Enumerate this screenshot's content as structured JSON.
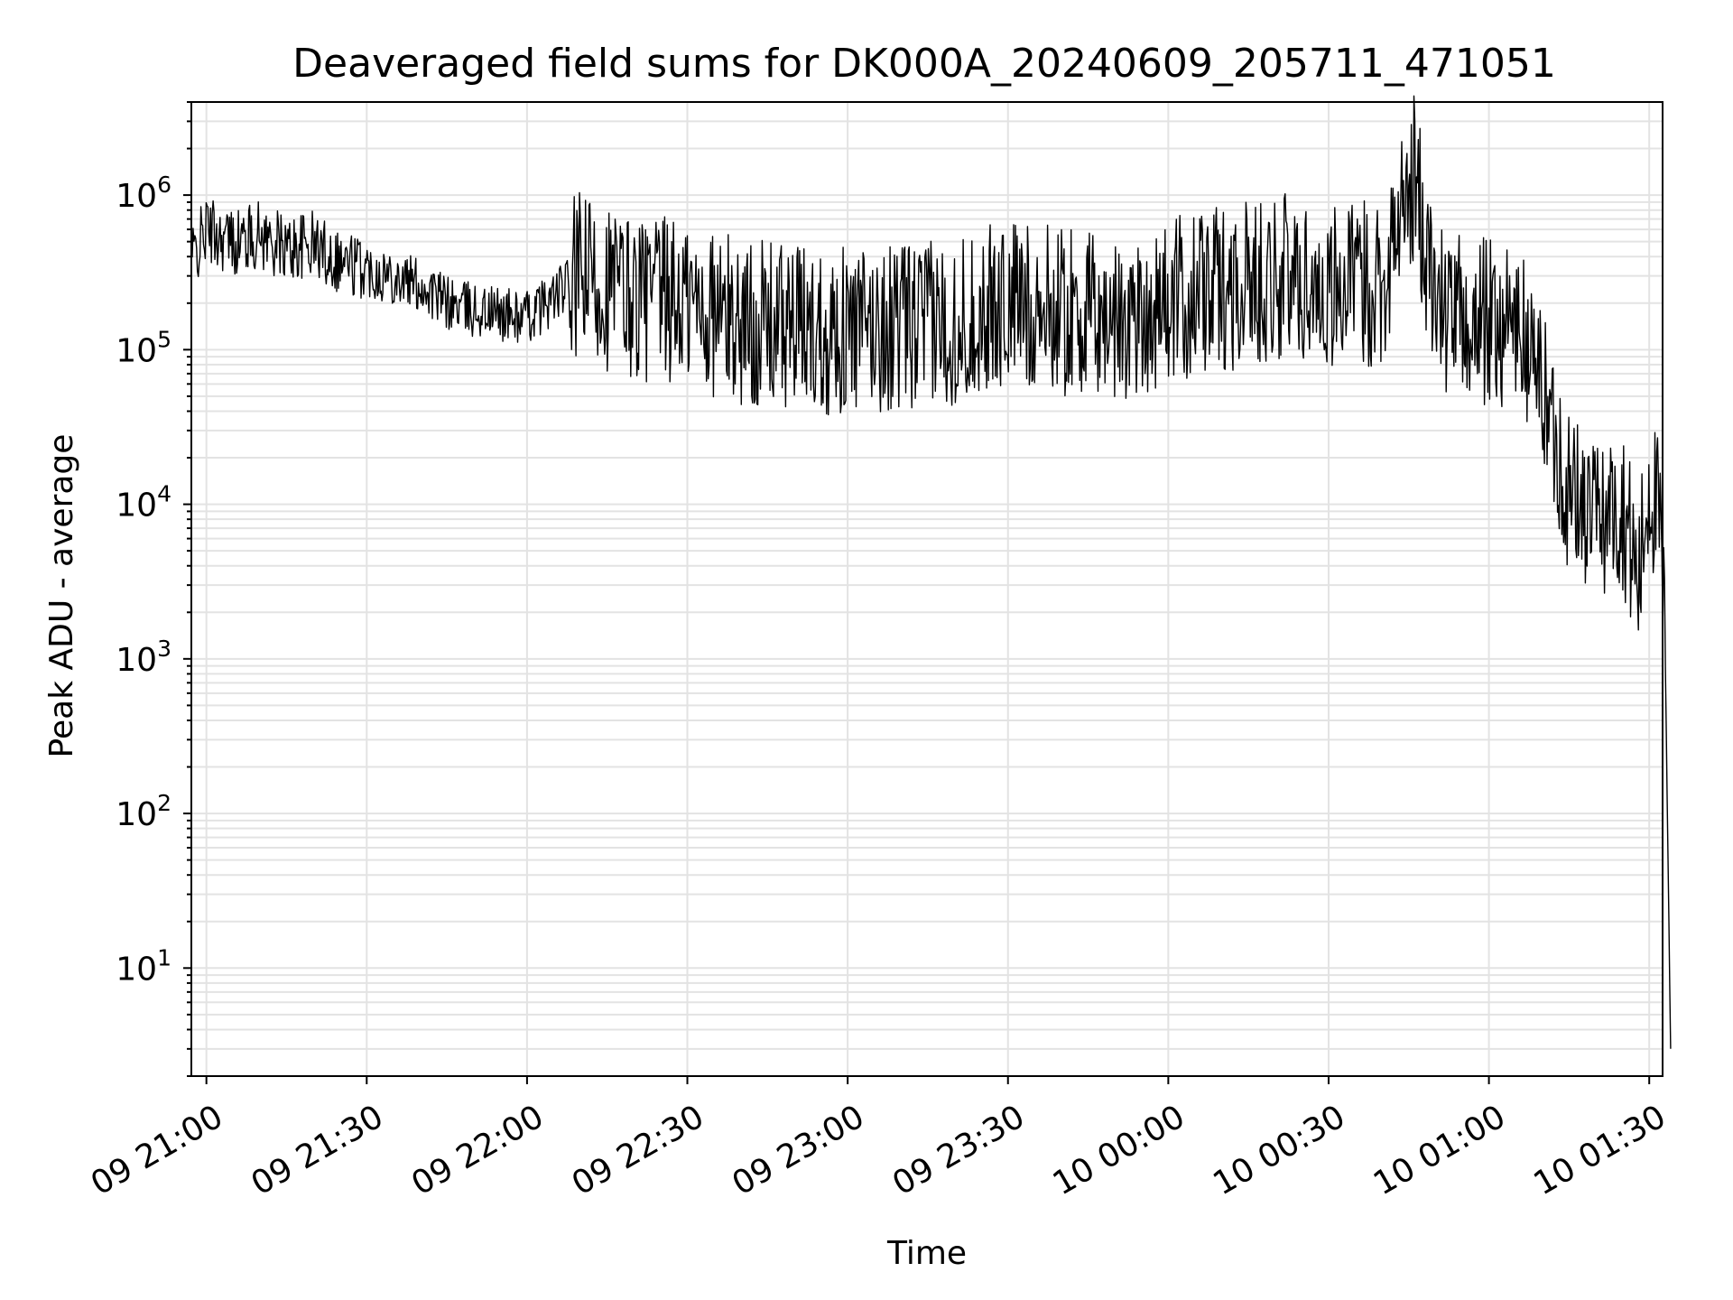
{
  "chart_data": {
    "type": "line",
    "title": "Deaveraged field sums for DK000A_20240609_205711_471051",
    "xlabel": "Time",
    "ylabel": "Peak ADU - average",
    "yscale": "log",
    "xlim": [
      "2024-06-09 20:57:11",
      "2024-06-10 01:32:30"
    ],
    "ylim": [
      2,
      4000000
    ],
    "grid": true,
    "line_color": "#000000",
    "x_ticks": [
      {
        "label": "09 21:00",
        "value": "2024-06-09 21:00"
      },
      {
        "label": "09 21:30",
        "value": "2024-06-09 21:30"
      },
      {
        "label": "09 22:00",
        "value": "2024-06-09 22:00"
      },
      {
        "label": "09 22:30",
        "value": "2024-06-09 22:30"
      },
      {
        "label": "09 23:00",
        "value": "2024-06-09 23:00"
      },
      {
        "label": "09 23:30",
        "value": "2024-06-09 23:30"
      },
      {
        "label": "10 00:00",
        "value": "2024-06-10 00:00"
      },
      {
        "label": "10 00:30",
        "value": "2024-06-10 00:30"
      },
      {
        "label": "10 01:00",
        "value": "2024-06-10 01:00"
      },
      {
        "label": "10 01:30",
        "value": "2024-06-10 01:30"
      }
    ],
    "y_ticks": [
      {
        "base": "10",
        "exp": "1",
        "value": 10
      },
      {
        "base": "10",
        "exp": "2",
        "value": 100
      },
      {
        "base": "10",
        "exp": "3",
        "value": 1000
      },
      {
        "base": "10",
        "exp": "4",
        "value": 10000
      },
      {
        "base": "10",
        "exp": "5",
        "value": 100000
      },
      {
        "base": "10",
        "exp": "6",
        "value": 1000000
      }
    ],
    "series": [
      {
        "points": [
          [
            "2024-06-09 20:57:11",
            380000
          ],
          [
            "2024-06-09 21:00",
            600000
          ],
          [
            "2024-06-09 21:05",
            500000
          ],
          [
            "2024-06-09 21:10",
            550000
          ],
          [
            "2024-06-09 21:15",
            450000
          ],
          [
            "2024-06-09 21:20",
            480000
          ],
          [
            "2024-06-09 21:25",
            380000
          ],
          [
            "2024-06-09 21:30",
            330000
          ],
          [
            "2024-06-09 21:35",
            300000
          ],
          [
            "2024-06-09 21:40",
            260000
          ],
          [
            "2024-06-09 21:45",
            200000
          ],
          [
            "2024-06-09 21:50",
            180000
          ],
          [
            "2024-06-09 21:55",
            170000
          ],
          [
            "2024-06-09 22:00",
            160000
          ],
          [
            "2024-06-09 22:10",
            300000
          ],
          [
            "2024-06-09 22:20",
            220000
          ],
          [
            "2024-06-09 22:30",
            200000
          ],
          [
            "2024-06-09 22:40",
            150000
          ],
          [
            "2024-06-09 22:50",
            140000
          ],
          [
            "2024-06-09 23:00",
            130000
          ],
          [
            "2024-06-09 23:10",
            140000
          ],
          [
            "2024-06-09 23:20",
            150000
          ],
          [
            "2024-06-09 23:30",
            200000
          ],
          [
            "2024-06-09 23:40",
            180000
          ],
          [
            "2024-06-09 23:50",
            150000
          ],
          [
            "2024-06-10 00:00",
            200000
          ],
          [
            "2024-06-10 00:10",
            250000
          ],
          [
            "2024-06-10 00:20",
            300000
          ],
          [
            "2024-06-10 00:30",
            250000
          ],
          [
            "2024-06-10 00:40",
            280000
          ],
          [
            "2024-06-10 00:46",
            1300000
          ],
          [
            "2024-06-10 00:50",
            200000
          ],
          [
            "2024-06-10 00:55",
            150000
          ],
          [
            "2024-06-10 01:00",
            150000
          ],
          [
            "2024-06-10 01:05",
            150000
          ],
          [
            "2024-06-10 01:10",
            60000
          ],
          [
            "2024-06-10 01:15",
            12000
          ],
          [
            "2024-06-10 01:20",
            8000
          ],
          [
            "2024-06-10 01:25",
            10000
          ],
          [
            "2024-06-10 01:28",
            3000
          ],
          [
            "2024-06-10 01:30",
            15000
          ],
          [
            "2024-06-10 01:32",
            7000
          ],
          [
            "2024-06-10 01:33",
            1000
          ],
          [
            "2024-06-10 01:34",
            3
          ]
        ]
      }
    ]
  }
}
